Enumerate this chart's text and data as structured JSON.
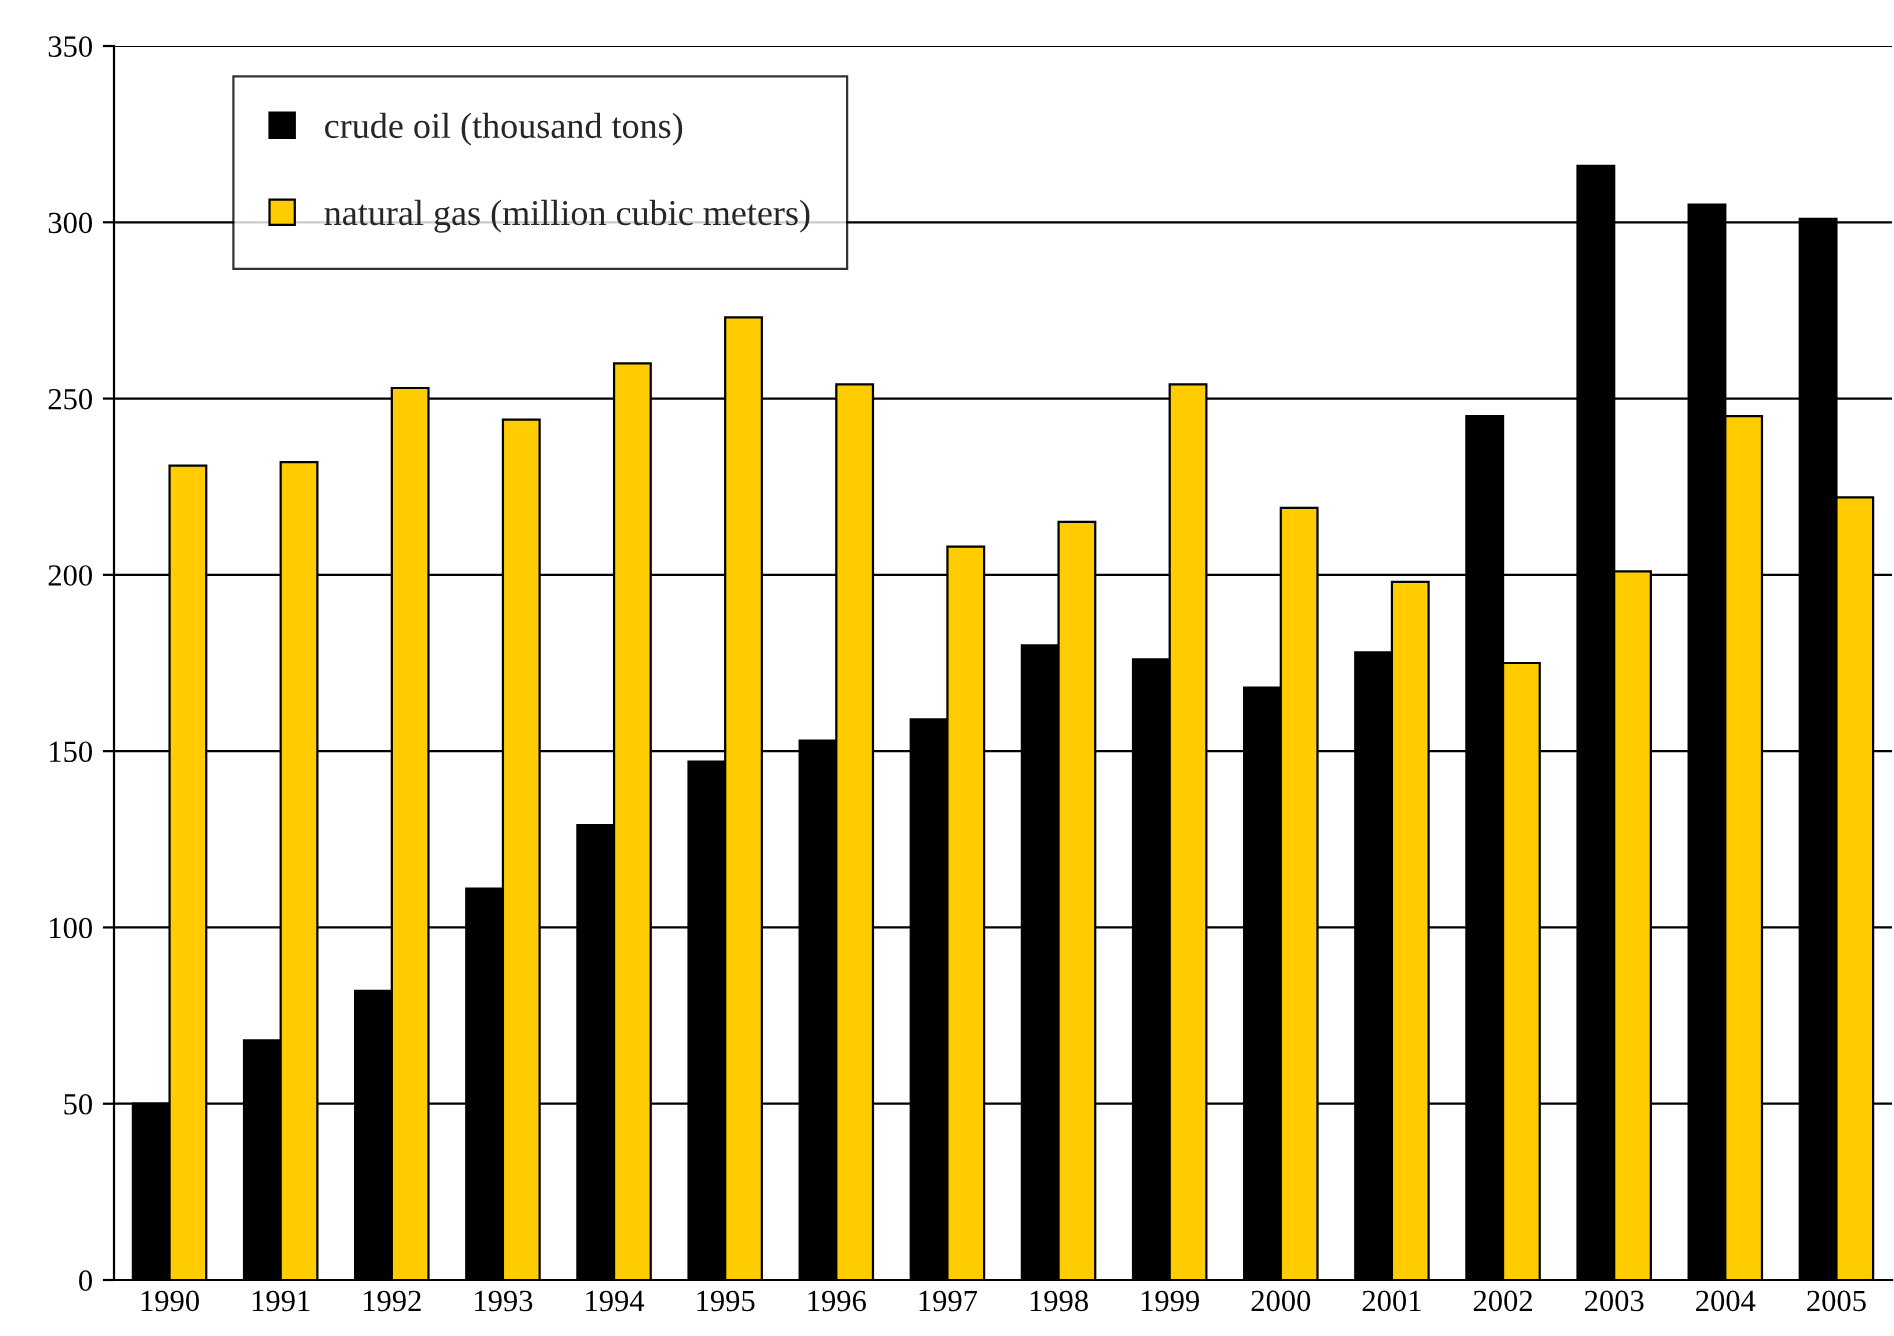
{
  "chart_data": {
    "type": "bar",
    "categories": [
      "1990",
      "1991",
      "1992",
      "1993",
      "1994",
      "1995",
      "1996",
      "1997",
      "1998",
      "1999",
      "2000",
      "2001",
      "2002",
      "2003",
      "2004",
      "2005"
    ],
    "series": [
      {
        "name": "crude oil (thousand tons)",
        "color": "#000000",
        "values": [
          50,
          68,
          82,
          111,
          129,
          147,
          153,
          159,
          180,
          176,
          168,
          178,
          245,
          316,
          305,
          301
        ]
      },
      {
        "name": "natural gas (million cubic meters)",
        "color": "#ffcc00",
        "values": [
          231,
          232,
          253,
          244,
          260,
          273,
          254,
          208,
          215,
          254,
          219,
          198,
          175,
          201,
          245,
          222
        ]
      }
    ],
    "ylim": [
      0,
      350
    ],
    "yticks": [
      0,
      50,
      100,
      150,
      200,
      250,
      300,
      350
    ],
    "grid": "y",
    "legend": "top left"
  }
}
